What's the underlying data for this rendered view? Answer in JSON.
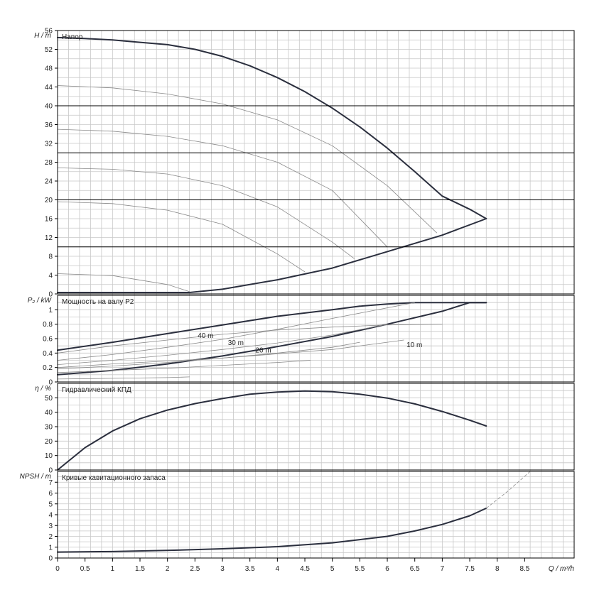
{
  "chart_data": {
    "type": "line",
    "x_axis": {
      "label": "Q / m³/h",
      "ticks": [
        0,
        0.5,
        1,
        1.5,
        2,
        2.5,
        3,
        3.5,
        4,
        4.5,
        5,
        5.5,
        6,
        6.5,
        7,
        7.5,
        8,
        8.5
      ],
      "tick_labels": [
        "0",
        "0.5",
        "1",
        "1.5",
        "2",
        "2.5",
        "3",
        "3.5",
        "4",
        "4.5",
        "5",
        "5.5",
        "6",
        "6.5",
        "7",
        "7.5",
        "8",
        "8.5"
      ],
      "range": [
        0,
        9.4
      ],
      "grid": true
    },
    "panels": [
      {
        "id": "head",
        "title": "Напор",
        "ylabel": "H / m",
        "ylim": [
          0,
          56
        ],
        "yticks": [
          0,
          4,
          8,
          12,
          16,
          20,
          24,
          28,
          32,
          36,
          40,
          44,
          48,
          52,
          56
        ],
        "series": [
          {
            "role": "max",
            "x": [
              0,
              0.5,
              1,
              1.5,
              2,
              2.5,
              3,
              3.5,
              4,
              4.5,
              5,
              5.5,
              6,
              6.5,
              7,
              7.5,
              7.8
            ],
            "y": [
              54.5,
              54.3,
              54.0,
              53.5,
              53.0,
              52.0,
              50.5,
              48.5,
              46.0,
              43.0,
              39.5,
              35.5,
              31.0,
              26.0,
              20.8,
              18.0,
              16.0
            ]
          },
          {
            "role": "min",
            "x": [
              0,
              2.4,
              3,
              4,
              5,
              6,
              7,
              7.8
            ],
            "y": [
              0.3,
              0.3,
              1.0,
              3.0,
              5.5,
              9.0,
              12.5,
              16.0
            ]
          },
          {
            "role": "speed",
            "x": [
              0,
              1,
              2,
              3,
              4,
              5,
              6,
              6.9
            ],
            "y": [
              44.3,
              43.8,
              42.5,
              40.4,
              37.0,
              31.5,
              23.0,
              13.0
            ]
          },
          {
            "role": "speed",
            "x": [
              0,
              1,
              2,
              3,
              4,
              5,
              6
            ],
            "y": [
              35.0,
              34.6,
              33.5,
              31.5,
              28.0,
              22.0,
              10.0
            ]
          },
          {
            "role": "speed",
            "x": [
              0,
              1,
              2,
              3,
              4,
              5,
              5.4
            ],
            "y": [
              26.8,
              26.5,
              25.5,
              23.0,
              18.5,
              11.0,
              7.5
            ]
          },
          {
            "role": "speed",
            "x": [
              0,
              1,
              2,
              3,
              4,
              4.5
            ],
            "y": [
              19.6,
              19.2,
              17.8,
              14.8,
              8.5,
              4.7
            ]
          },
          {
            "role": "speed",
            "x": [
              0,
              1,
              2,
              2.4
            ],
            "y": [
              4.3,
              3.9,
              2.0,
              0.5
            ]
          },
          {
            "role": "hline",
            "x": [
              0,
              9.4
            ],
            "y": [
              40,
              40
            ]
          },
          {
            "role": "hline",
            "x": [
              0,
              9.4
            ],
            "y": [
              30,
              30
            ]
          },
          {
            "role": "hline",
            "x": [
              0,
              9.4
            ],
            "y": [
              20,
              20
            ]
          },
          {
            "role": "hline",
            "x": [
              0,
              9.4
            ],
            "y": [
              10,
              10
            ]
          }
        ],
        "annotations": []
      },
      {
        "id": "power",
        "title": "Мощность на валу P2",
        "ylabel": "P₂ / kW",
        "ylim": [
          0,
          1.2
        ],
        "yticks": [
          0,
          0.2,
          0.4,
          0.6,
          0.8,
          1
        ],
        "series": [
          {
            "role": "max",
            "x": [
              0,
              1,
              2,
              3,
              4,
              5,
              5.5,
              6,
              6.5,
              7,
              7.5,
              7.8
            ],
            "y": [
              0.44,
              0.55,
              0.67,
              0.79,
              0.91,
              1.0,
              1.05,
              1.08,
              1.1,
              1.1,
              1.1,
              1.1
            ]
          },
          {
            "role": "min",
            "x": [
              0,
              1,
              2,
              3,
              4,
              5,
              6,
              7,
              7.5,
              7.8
            ],
            "y": [
              0.1,
              0.16,
              0.25,
              0.36,
              0.49,
              0.63,
              0.8,
              0.98,
              1.1,
              1.1
            ]
          },
          {
            "role": "speed",
            "x": [
              0,
              1,
              2,
              3,
              4,
              5,
              6.5
            ],
            "y": [
              0.3,
              0.38,
              0.48,
              0.59,
              0.73,
              0.88,
              1.1
            ]
          },
          {
            "role": "speed",
            "x": [
              0,
              1,
              2,
              3,
              4,
              5,
              6
            ],
            "y": [
              0.24,
              0.3,
              0.37,
              0.45,
              0.54,
              0.65,
              0.8
            ]
          },
          {
            "role": "speed",
            "x": [
              0,
              1,
              2,
              3,
              4,
              5,
              5.5
            ],
            "y": [
              0.18,
              0.22,
              0.27,
              0.33,
              0.4,
              0.48,
              0.55
            ]
          },
          {
            "role": "speed",
            "x": [
              0,
              1,
              2,
              3,
              4,
              4.6
            ],
            "y": [
              0.13,
              0.16,
              0.19,
              0.23,
              0.27,
              0.3
            ]
          },
          {
            "role": "speed",
            "x": [
              0,
              1,
              2,
              2.4
            ],
            "y": [
              0.04,
              0.05,
              0.06,
              0.07
            ]
          },
          {
            "role": "speed",
            "x": [
              0,
              1,
              2,
              3,
              4,
              5,
              6,
              6.3
            ],
            "y": [
              0.2,
              0.25,
              0.29,
              0.33,
              0.39,
              0.45,
              0.55,
              0.58
            ]
          },
          {
            "role": "speed",
            "x": [
              0,
              1,
              2,
              3,
              4,
              5,
              6,
              7
            ],
            "y": [
              0.4,
              0.5,
              0.58,
              0.66,
              0.72,
              0.76,
              0.79,
              0.8
            ]
          }
        ],
        "annotations": [
          {
            "text": "40 m",
            "x": 2.55,
            "y": 0.61
          },
          {
            "text": "30 m",
            "x": 3.1,
            "y": 0.51
          },
          {
            "text": "20 m",
            "x": 3.6,
            "y": 0.41
          },
          {
            "text": "10 m",
            "x": 6.35,
            "y": 0.48
          }
        ]
      },
      {
        "id": "efficiency",
        "title": "Гидравлический КПД",
        "ylabel": "η / %",
        "ylim": [
          0,
          60
        ],
        "yticks": [
          0,
          10,
          20,
          30,
          40,
          50
        ],
        "series": [
          {
            "role": "max",
            "x": [
              0,
              0.5,
              1,
              1.5,
              2,
              2.5,
              3,
              3.5,
              4,
              4.5,
              5,
              5.5,
              6,
              6.5,
              7,
              7.5,
              7.8
            ],
            "y": [
              0,
              15.5,
              27,
              35.5,
              41.5,
              46,
              49.5,
              52.5,
              54,
              54.7,
              54.2,
              52.5,
              49.8,
              45.8,
              40.5,
              34.5,
              30.5
            ]
          }
        ],
        "annotations": []
      },
      {
        "id": "npsh",
        "title": "Кривые кавитационного запаса",
        "ylabel": "NPSH / m",
        "ylim": [
          0,
          8
        ],
        "yticks": [
          0,
          1,
          2,
          3,
          4,
          5,
          6,
          7
        ],
        "series": [
          {
            "role": "max",
            "x": [
              0,
              1,
              2,
              3,
              4,
              5,
              5.5,
              6,
              6.5,
              7,
              7.5,
              7.8
            ],
            "y": [
              0.55,
              0.6,
              0.7,
              0.85,
              1.05,
              1.4,
              1.7,
              2.0,
              2.5,
              3.1,
              3.9,
              4.6
            ]
          },
          {
            "role": "extension",
            "x": [
              7.8,
              8.2,
              8.6
            ],
            "y": [
              4.6,
              6.2,
              8.0
            ]
          }
        ],
        "annotations": []
      }
    ]
  },
  "colors": {
    "thick": "#2b2f3e",
    "thin": "#8a8a8a",
    "grid": "#c8c8c8",
    "frame": "#000000",
    "text": "#222222"
  }
}
